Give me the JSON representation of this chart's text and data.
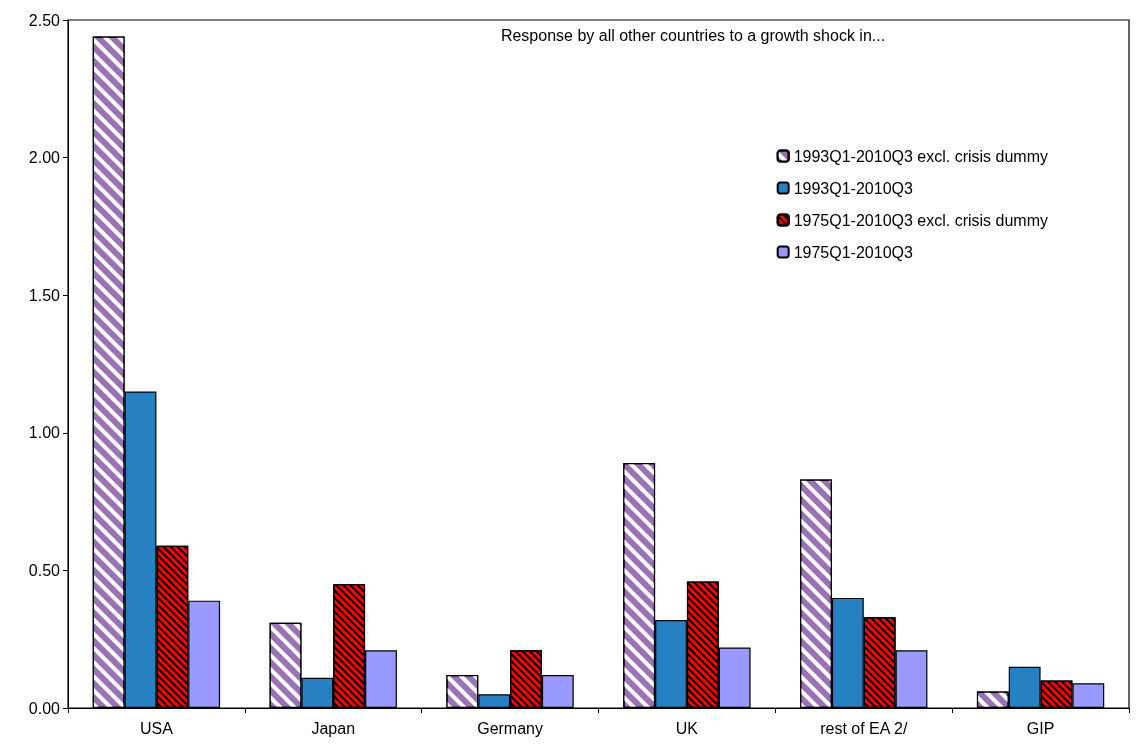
{
  "chart_data": {
    "type": "bar",
    "title": "Response by all other countries to a growth shock in...",
    "categories": [
      "USA",
      "Japan",
      "Germany",
      "UK",
      "rest of EA 2/",
      "GIP"
    ],
    "series": [
      {
        "name": "1993Q1-2010Q3 excl. crisis dummy",
        "color": "#9b72b8",
        "values": [
          2.44,
          0.31,
          0.12,
          0.89,
          0.83,
          0.06
        ]
      },
      {
        "name": "1993Q1-2010Q3",
        "color": "#2680c2",
        "values": [
          1.15,
          0.11,
          0.05,
          0.32,
          0.4,
          0.15
        ]
      },
      {
        "name": "1975Q1-2010Q3 excl. crisis dummy",
        "color": "#ff0000",
        "values": [
          0.59,
          0.45,
          0.21,
          0.46,
          0.33,
          0.1
        ]
      },
      {
        "name": "1975Q1-2010Q3",
        "color": "#9999ff",
        "values": [
          0.39,
          0.21,
          0.12,
          0.22,
          0.21,
          0.09
        ]
      }
    ],
    "ylim": [
      0,
      2.5
    ],
    "yticks": [
      {
        "value": 0,
        "label": "0.00"
      },
      {
        "value": 0.5,
        "label": "0.50"
      },
      {
        "value": 1,
        "label": "1.00"
      },
      {
        "value": 1.5,
        "label": "1.50"
      },
      {
        "value": 2,
        "label": "2.00"
      },
      {
        "value": 2.5,
        "label": "2.50"
      }
    ],
    "grid": false,
    "legend": "top right"
  }
}
